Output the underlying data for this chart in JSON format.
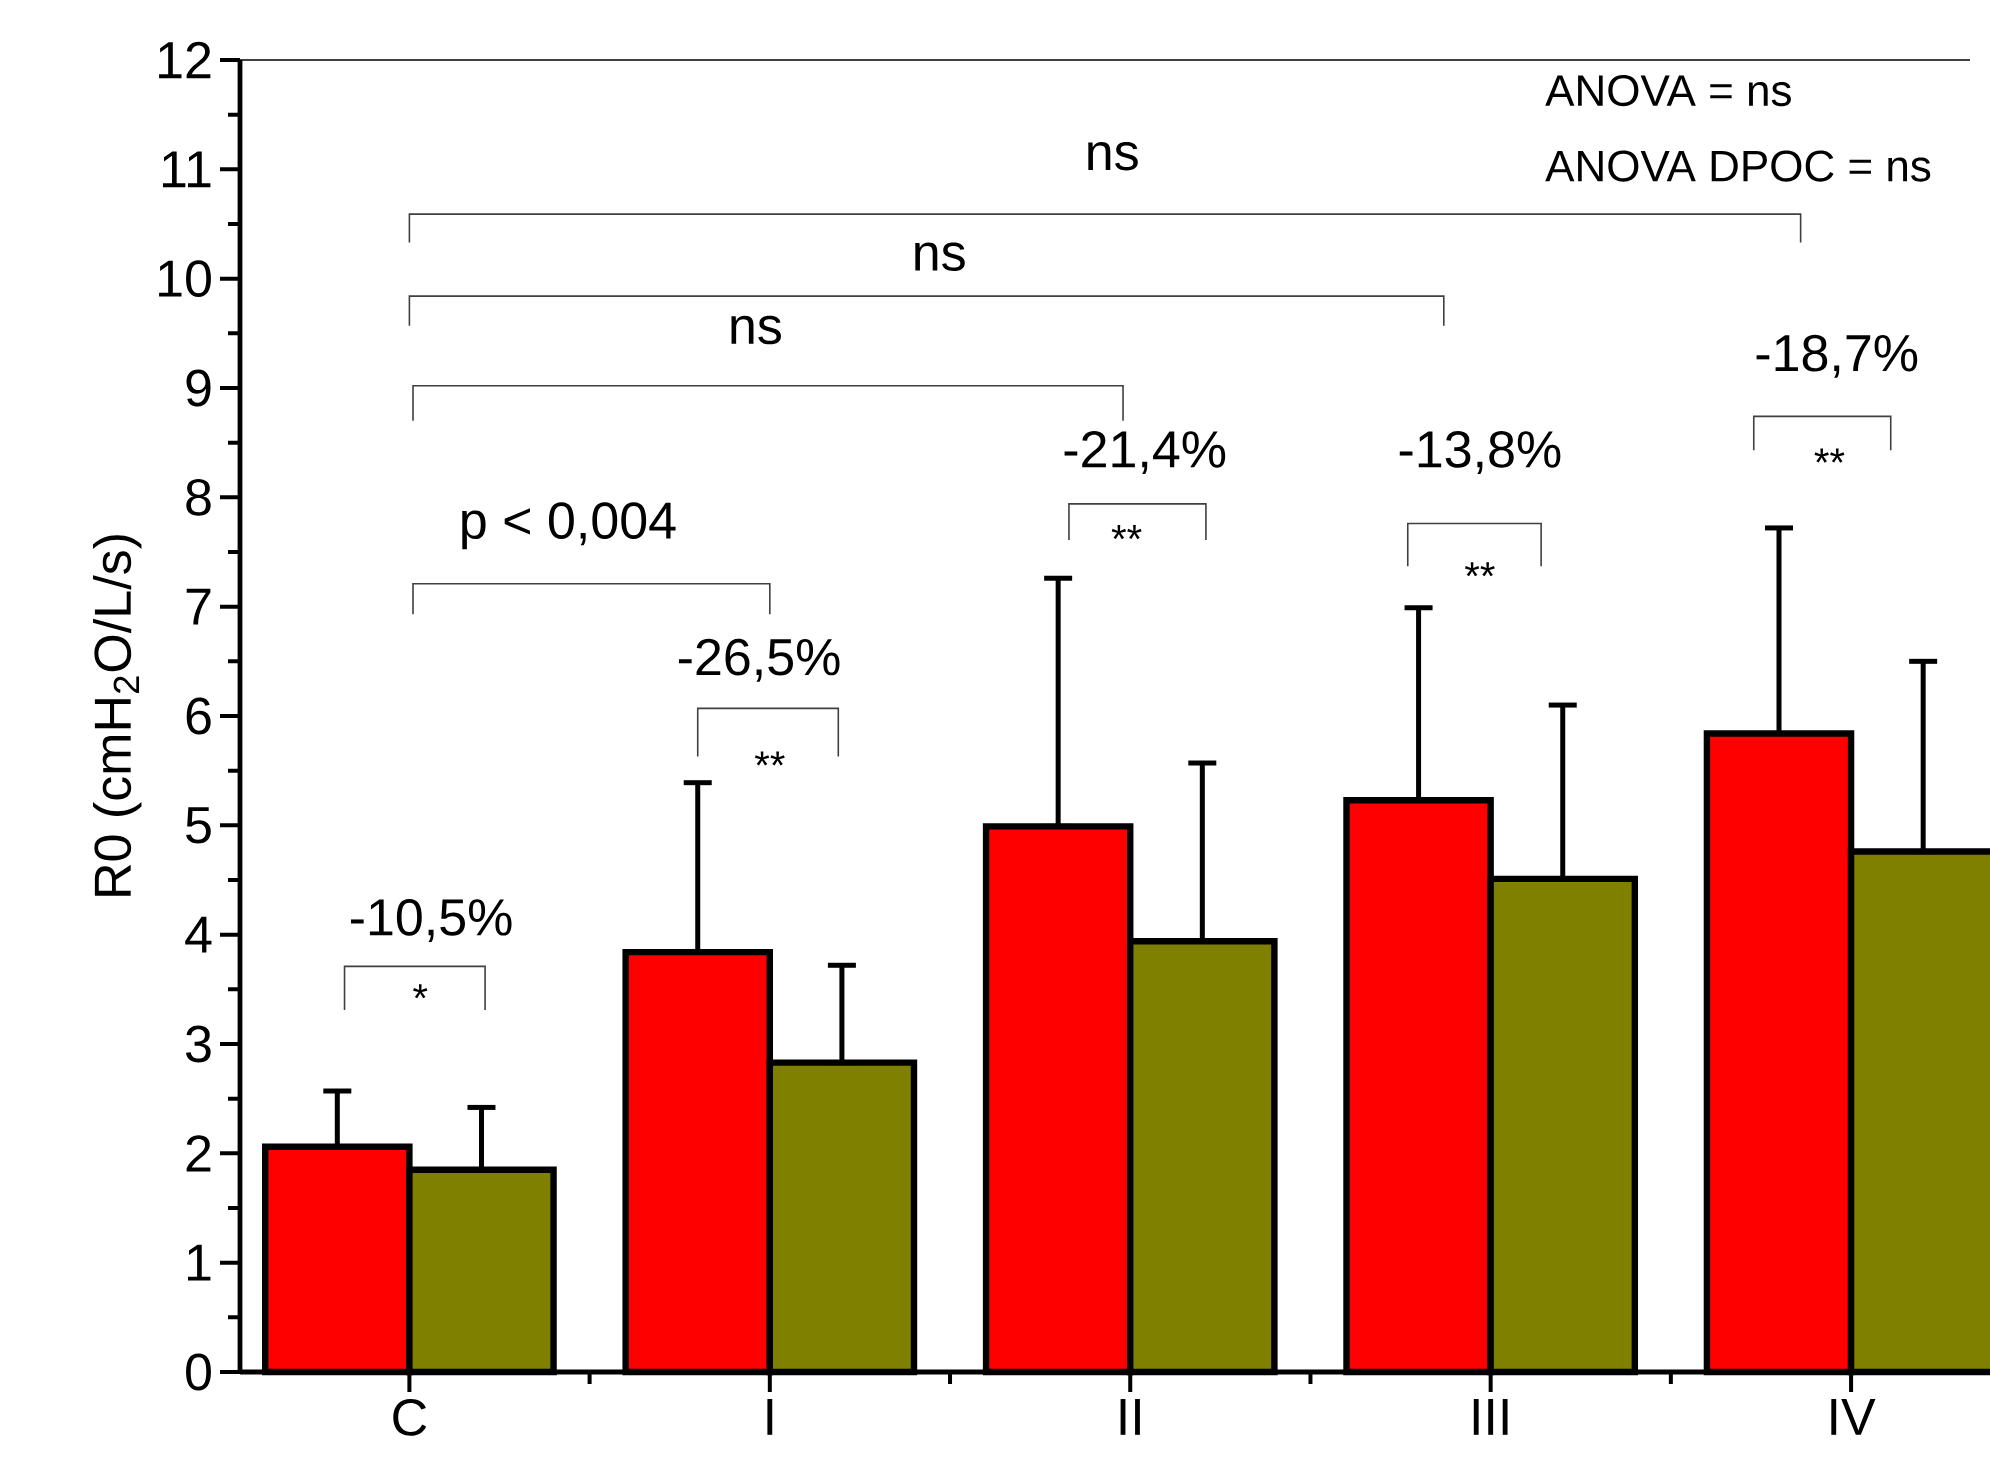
{
  "chart_data": {
    "type": "bar",
    "ylabel": "R0 (cmH$_{2}$O/L/s)",
    "categories": [
      "C",
      "I",
      "II",
      "III",
      "IV"
    ],
    "series": [
      {
        "color": "#ff0000",
        "values": [
          2.06,
          3.84,
          4.99,
          5.23,
          5.84
        ],
        "errors": [
          [
            2.06,
            2.57
          ],
          [
            3.84,
            5.39
          ],
          [
            4.99,
            7.26
          ],
          [
            5.23,
            6.99
          ],
          [
            5.84,
            7.72
          ]
        ]
      },
      {
        "color": "#808000",
        "values": [
          1.85,
          2.83,
          3.94,
          4.51,
          4.76
        ],
        "errors": [
          [
            1.85,
            2.42
          ],
          [
            2.83,
            3.72
          ],
          [
            3.94,
            5.57
          ],
          [
            4.51,
            6.1
          ],
          [
            4.76,
            6.5
          ]
        ]
      }
    ],
    "ylim": [
      0,
      12
    ],
    "yticks": [
      0,
      1,
      2,
      3,
      4,
      5,
      6,
      7,
      8,
      9,
      10,
      11,
      12
    ],
    "annotations": [
      "-10,5%",
      "*",
      "-26,5%",
      "**",
      "p < 0,004",
      "ns",
      "ns",
      "ns",
      "-21,4%",
      "**",
      "-13,8%",
      "**",
      "-18,7%",
      "**",
      "ANOVA = ns",
      "ANOVA DPOC = ns"
    ]
  }
}
